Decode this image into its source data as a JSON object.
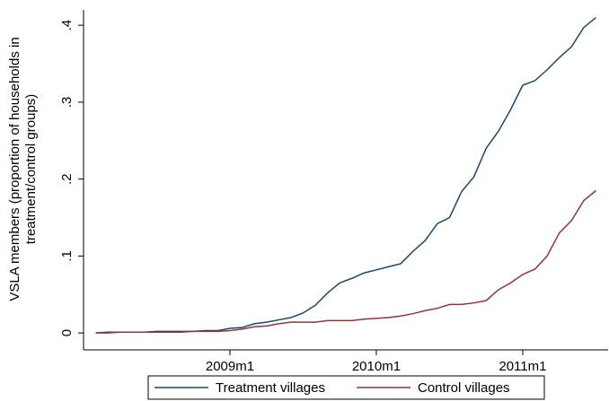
{
  "chart_data": {
    "type": "line",
    "ylabel": [
      "VSLA members (proportion of households in",
      "treatment/control groups)"
    ],
    "x": [
      577,
      578,
      579,
      580,
      581,
      582,
      583,
      584,
      585,
      586,
      587,
      588,
      589,
      590,
      591,
      592,
      593,
      594,
      595,
      596,
      597,
      598,
      599,
      600,
      601,
      602,
      603,
      604,
      605,
      606,
      607,
      608,
      609,
      610,
      611,
      612,
      613,
      614,
      615,
      616,
      617,
      618
    ],
    "series": [
      {
        "name": "Treatment villages",
        "color": "#1a476f",
        "values": [
          0,
          0.001,
          0.001,
          0.001,
          0.001,
          0.002,
          0.002,
          0.002,
          0.002,
          0.003,
          0.003,
          0.006,
          0.007,
          0.012,
          0.014,
          0.017,
          0.02,
          0.026,
          0.036,
          0.052,
          0.065,
          0.071,
          0.078,
          0.082,
          0.086,
          0.09,
          0.106,
          0.12,
          0.142,
          0.15,
          0.184,
          0.203,
          0.24,
          0.262,
          0.29,
          0.322,
          0.328,
          0.342,
          0.358,
          0.372,
          0.397,
          0.41
        ]
      },
      {
        "name": "Control villages",
        "color": "#90353b",
        "values": [
          0,
          0,
          0.001,
          0.001,
          0.001,
          0.001,
          0.001,
          0.001,
          0.002,
          0.002,
          0.002,
          0.003,
          0.005,
          0.008,
          0.009,
          0.012,
          0.014,
          0.014,
          0.014,
          0.016,
          0.016,
          0.016,
          0.018,
          0.019,
          0.02,
          0.022,
          0.025,
          0.029,
          0.032,
          0.037,
          0.037,
          0.039,
          0.042,
          0.056,
          0.065,
          0.076,
          0.083,
          0.1,
          0.13,
          0.146,
          0.172,
          0.185
        ]
      }
    ],
    "xlim": [
      576,
      619
    ],
    "xticks": [
      {
        "value": 588,
        "label": "2009m1"
      },
      {
        "value": 600,
        "label": "2010m1"
      },
      {
        "value": 612,
        "label": "2011m1"
      }
    ],
    "ylim": [
      -0.022,
      0.42
    ],
    "yticks": [
      0,
      {
        "value": 0.1,
        "label": ".1"
      },
      {
        "value": 0.2,
        "label": ".2"
      },
      {
        "value": 0.3,
        "label": ".3"
      },
      {
        "value": 0.4,
        "label": ".4"
      }
    ],
    "grid": false,
    "legend": "bottom"
  }
}
